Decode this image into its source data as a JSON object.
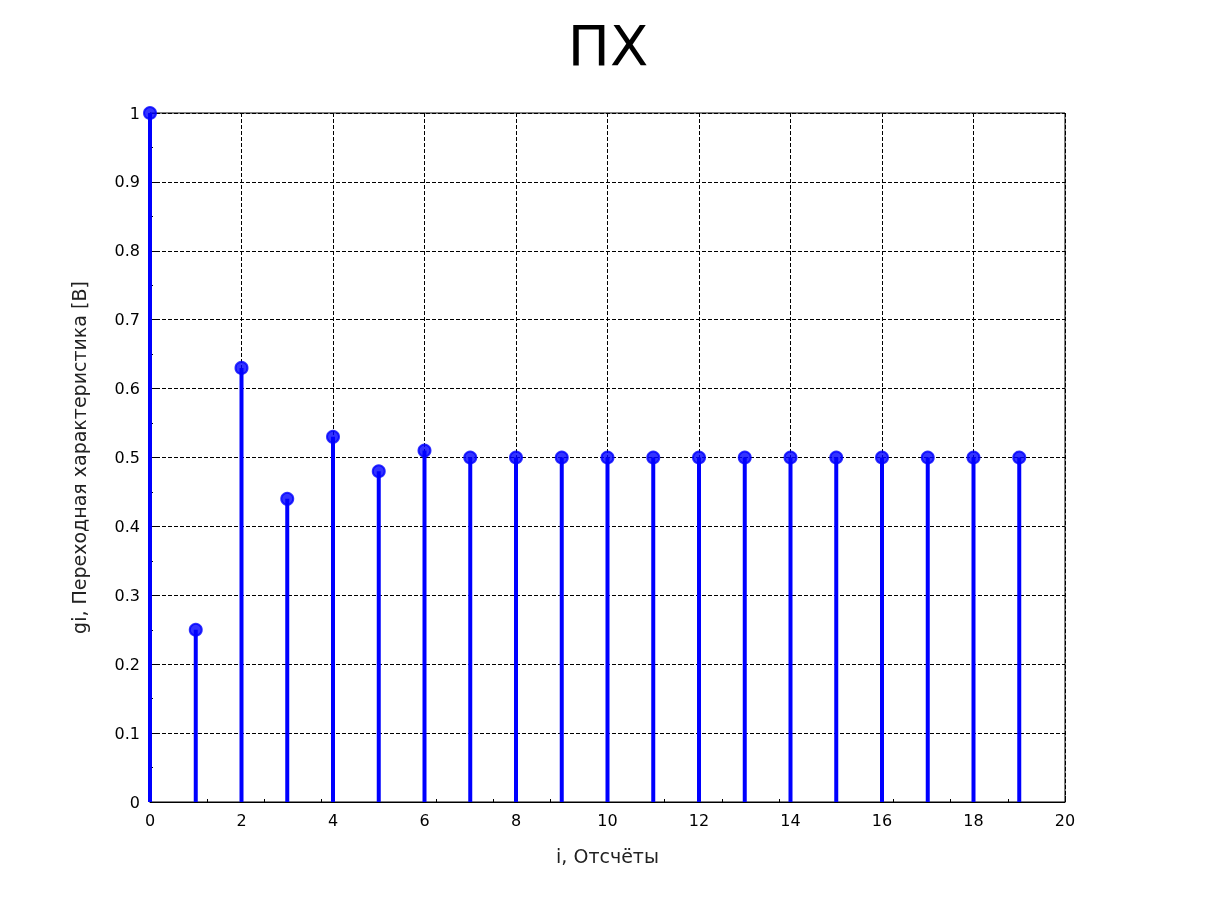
{
  "chart_data": {
    "type": "lollipop",
    "title": "ПХ",
    "xlabel": "i, Отсчёты",
    "ylabel": "gi, Переходная характеристика [В]",
    "x": [
      0,
      1,
      2,
      3,
      4,
      5,
      6,
      7,
      8,
      9,
      10,
      11,
      12,
      13,
      14,
      15,
      16,
      17,
      18,
      19
    ],
    "series": [
      {
        "color": "#0000ff",
        "values": [
          1,
          0.25,
          0.63,
          0.44,
          0.53,
          0.48,
          0.51,
          0.5,
          0.5,
          0.5,
          0.5,
          0.5,
          0.5,
          0.5,
          0.5,
          0.5,
          0.5,
          0.5,
          0.5,
          0.5
        ]
      }
    ],
    "xlim": [
      0,
      20
    ],
    "xticks": [
      0,
      2,
      4,
      6,
      8,
      10,
      12,
      14,
      16,
      18,
      20
    ],
    "ylim": [
      0,
      1
    ],
    "yticks": [
      0,
      0.1,
      0.2,
      0.3,
      0.4,
      0.5,
      0.6,
      0.7,
      0.8,
      0.9,
      1
    ],
    "grid": true,
    "marker": "circle"
  }
}
